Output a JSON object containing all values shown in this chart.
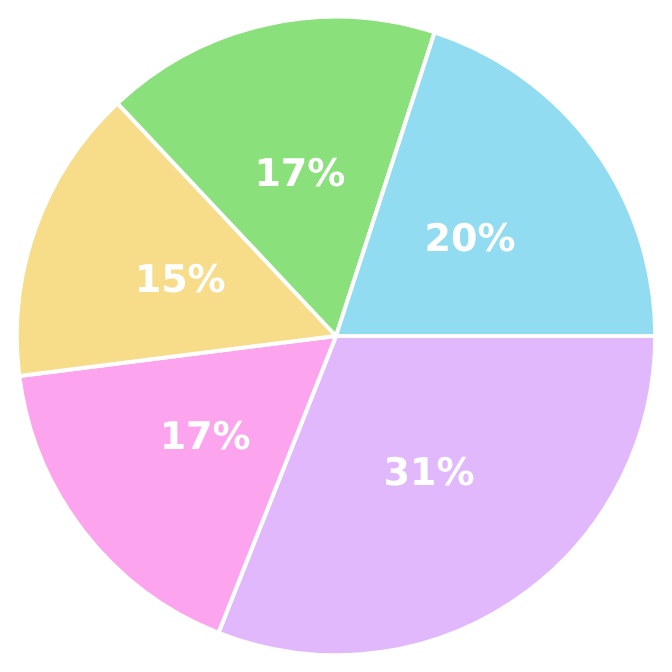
{
  "chart_data": {
    "type": "pie",
    "categories": [
      null,
      null,
      null,
      null,
      null
    ],
    "values": [
      31,
      17,
      15,
      17,
      20
    ],
    "colors": [
      "#e0b8fb",
      "#fca4ee",
      "#f7dc8a",
      "#8ae07a",
      "#91dcf0"
    ],
    "value_labels": [
      "31%",
      "17%",
      "15%",
      "17%",
      "20%"
    ]
  }
}
